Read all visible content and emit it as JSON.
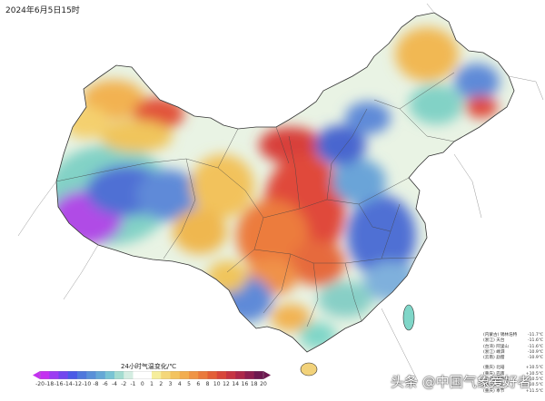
{
  "timestamp": "2024年6月5日15时",
  "legend": {
    "title": "24小时气温变化/℃",
    "ticks": [
      "-20",
      "-18",
      "-16",
      "-14",
      "-12",
      "-10",
      "-8",
      "-6",
      "-4",
      "-2",
      "-1",
      "0",
      "1",
      "2",
      "3",
      "4",
      "5",
      "6",
      "8",
      "10",
      "12",
      "14",
      "16",
      "18",
      "20"
    ],
    "colors": [
      "#c431f0",
      "#9b3cf2",
      "#7146ee",
      "#4a5ae6",
      "#4f78dc",
      "#5a90d8",
      "#66a8d6",
      "#79c4d4",
      "#a3dcd0",
      "#d4ede2",
      "#ffffff",
      "#ffffff",
      "#f6ee9c",
      "#f4d77a",
      "#f3c35f",
      "#f2ad4f",
      "#ef9445",
      "#ea7a3d",
      "#e35f37",
      "#d8463a",
      "#c63442",
      "#ad274a",
      "#8d1e50",
      "#6d1850"
    ]
  },
  "stations_cold": [
    {
      "region": "(内蒙古)",
      "name": "锡林浩特",
      "value": "-11.7℃"
    },
    {
      "region": "(浙江)",
      "name": "天台",
      "value": "-11.6℃"
    },
    {
      "region": "(台湾)",
      "name": "阿里山",
      "value": "-11.6℃"
    },
    {
      "region": "(浙江)",
      "name": "嵊泗",
      "value": "-10.9℃"
    },
    {
      "region": "(云南)",
      "name": "勐腊",
      "value": "-10.9℃"
    }
  ],
  "stations_warm": [
    {
      "region": "(重庆)",
      "name": "北碚",
      "value": "+10.5℃"
    },
    {
      "region": "(重庆)",
      "name": "巴南",
      "value": "+10.5℃"
    },
    {
      "region": "(重庆)",
      "name": "沙坪坝",
      "value": "+10.5℃"
    },
    {
      "region": "(重庆)",
      "name": "江北",
      "value": "+10.5℃"
    },
    {
      "region": "(重庆)",
      "name": "奉节",
      "value": "+11.5℃"
    }
  ],
  "watermark": "头条 @中国气象爱好者",
  "field_colors": {
    "outside": "#ffffff",
    "strong_cold": "#4f6fd4",
    "cold": "#7fb0dc",
    "cool": "#7fd6c8",
    "neutral": "#e8f2e4",
    "warm": "#f4d06e",
    "hot": "#ef8a44",
    "very_hot": "#e0493a",
    "magenta_west": "#b347e6"
  }
}
